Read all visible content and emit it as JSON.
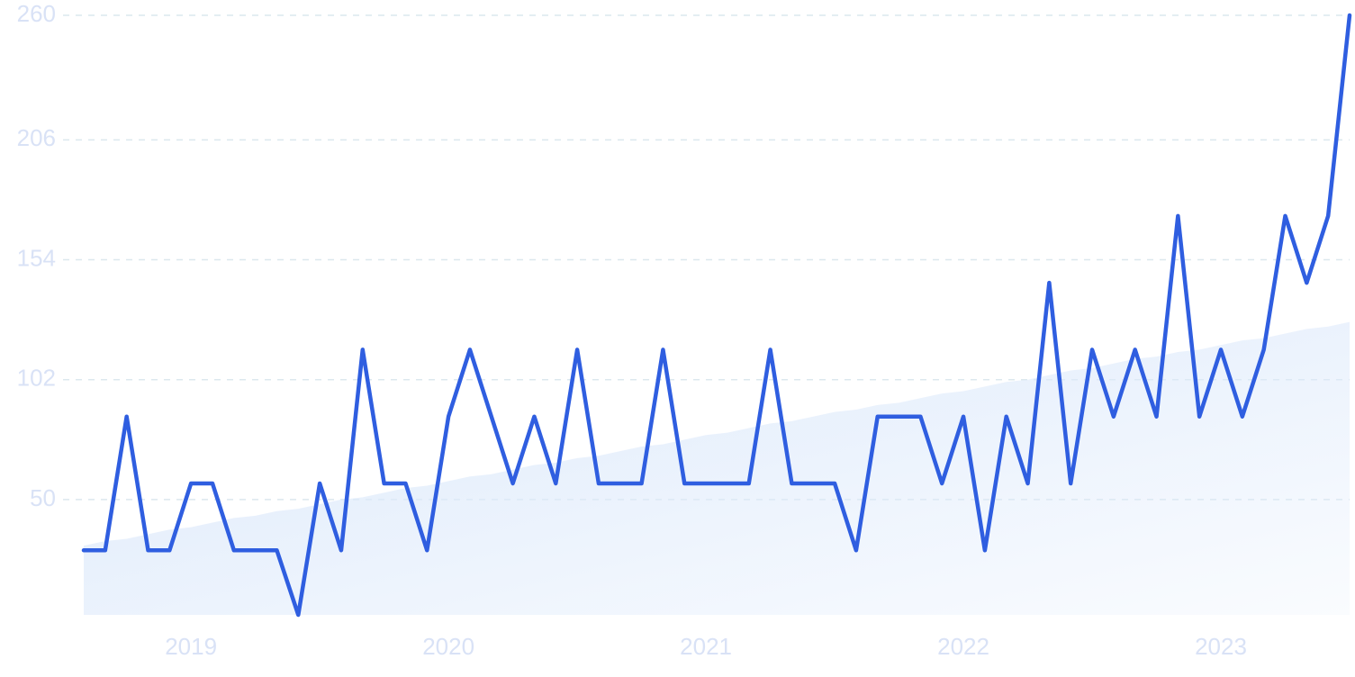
{
  "chart_data": {
    "type": "line",
    "categories": [
      null,
      null,
      null,
      null,
      null,
      "2019",
      null,
      null,
      null,
      null,
      null,
      null,
      null,
      null,
      null,
      null,
      null,
      "2020",
      null,
      null,
      null,
      null,
      null,
      null,
      null,
      null,
      null,
      null,
      null,
      "2021",
      null,
      null,
      null,
      null,
      null,
      null,
      null,
      null,
      null,
      null,
      null,
      "2022",
      null,
      null,
      null,
      null,
      null,
      null,
      null,
      null,
      null,
      null,
      null,
      "2023",
      null,
      null,
      null,
      null,
      null,
      null
    ],
    "series": [
      {
        "color": "#2f5ee0",
        "values": [
          28,
          28,
          86,
          28,
          28,
          57,
          57,
          28,
          28,
          28,
          0,
          57,
          28,
          115,
          57,
          57,
          28,
          86,
          115,
          86,
          57,
          86,
          57,
          115,
          57,
          57,
          57,
          115,
          57,
          57,
          57,
          57,
          115,
          57,
          57,
          57,
          28,
          86,
          86,
          86,
          57,
          86,
          28,
          86,
          57,
          144,
          57,
          115,
          86,
          115,
          86,
          173,
          86,
          115,
          86,
          115,
          173,
          144,
          173,
          260
        ]
      },
      {
        "color": "#dce9fb",
        "fill": true,
        "values": [
          30,
          32,
          33,
          35,
          37,
          38,
          40,
          42,
          43,
          45,
          46,
          48,
          50,
          51,
          53,
          55,
          56,
          58,
          60,
          61,
          63,
          65,
          66,
          68,
          69,
          71,
          73,
          74,
          76,
          78,
          79,
          81,
          83,
          84,
          86,
          88,
          89,
          91,
          92,
          94,
          96,
          97,
          99,
          101,
          102,
          104,
          106,
          107,
          109,
          111,
          112,
          114,
          115,
          117,
          119,
          120,
          122,
          124,
          125,
          127
        ]
      }
    ],
    "ylim": [
      0,
      260
    ],
    "yticks": [
      50,
      102,
      154,
      206,
      260
    ],
    "grid": true
  }
}
